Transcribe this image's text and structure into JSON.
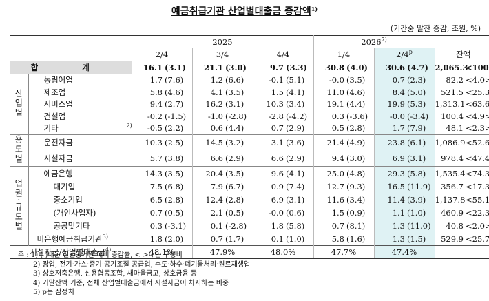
{
  "header": {
    "title": "예금취급기관 산업별대출금 증감액",
    "title_note": "1)",
    "unit": "(기간중 말잔 증감, 조원, %)"
  },
  "table": {
    "years": [
      {
        "label": "2025"
      },
      {
        "label": "2026",
        "note": "7)"
      }
    ],
    "periods": [
      {
        "label": "2/4"
      },
      {
        "label": "3/4"
      },
      {
        "label": "4/4"
      },
      {
        "label": "1/4"
      },
      {
        "label": "2/4",
        "note": "p"
      }
    ],
    "balance_header": "잔액",
    "total": {
      "label": "합 계",
      "cells": [
        [
          "16.1",
          "(3.1)"
        ],
        [
          "21.1",
          "(3.0)"
        ],
        [
          "9.7",
          "(3.3)"
        ],
        [
          "30.8",
          "(4.0)"
        ],
        [
          "30.6",
          "(4.7)"
        ]
      ],
      "balance": [
        "2,065.3",
        "<100.0>"
      ]
    },
    "groups": [
      {
        "label": "산업별",
        "rows": [
          {
            "label": "농림어업",
            "cells": [
              [
                "1.7",
                "(7.6)"
              ],
              [
                "1.2",
                "(6.6)"
              ],
              [
                "-0.1",
                "(5.1)"
              ],
              [
                "-0.0",
                "(3.5)"
              ],
              [
                "0.7",
                "(2.3)"
              ]
            ],
            "balance": [
              "82.2",
              "<4.0>"
            ]
          },
          {
            "label": "제조업",
            "cells": [
              [
                "5.8",
                "(4.6)"
              ],
              [
                "4.1",
                "(3.5)"
              ],
              [
                "1.5",
                "(4.1)"
              ],
              [
                "11.0",
                "(4.6)"
              ],
              [
                "8.4",
                "(5.0)"
              ]
            ],
            "balance": [
              "521.5",
              "<25.3>"
            ]
          },
          {
            "label": "서비스업",
            "cells": [
              [
                "9.4",
                "(2.7)"
              ],
              [
                "16.2",
                "(3.1)"
              ],
              [
                "10.3",
                "(3.4)"
              ],
              [
                "19.1",
                "(4.4)"
              ],
              [
                "19.9",
                "(5.3)"
              ]
            ],
            "balance": [
              "1,313.1",
              "<63.6>"
            ]
          },
          {
            "label": "건설업",
            "cells": [
              [
                "-0.2",
                "(-1.5)"
              ],
              [
                "-1.0",
                "(-2.8)"
              ],
              [
                "-2.8",
                "(-4.2)"
              ],
              [
                "0.3",
                "(-3.6)"
              ],
              [
                "-0.0",
                "(-3.4)"
              ]
            ],
            "balance": [
              "100.4",
              "<4.9>"
            ]
          },
          {
            "label": "기타",
            "note": "2)",
            "cells": [
              [
                "-0.5",
                "(2.2)"
              ],
              [
                "0.6",
                "(4.4)"
              ],
              [
                "0.7",
                "(2.9)"
              ],
              [
                "0.5",
                "(2.8)"
              ],
              [
                "1.7",
                "(7.9)"
              ]
            ],
            "balance": [
              "48.1",
              "<2.3>"
            ]
          }
        ]
      },
      {
        "label": "용도별",
        "rows": [
          {
            "label": "운전자금",
            "cells": [
              [
                "10.3",
                "(2.5)"
              ],
              [
                "14.5",
                "(3.2)"
              ],
              [
                "3.1",
                "(3.6)"
              ],
              [
                "21.4",
                "(4.9)"
              ],
              [
                "23.8",
                "(6.1)"
              ]
            ],
            "balance": [
              "1,086.9",
              "<52.6>"
            ]
          },
          {
            "label": "시설자금",
            "cells": [
              [
                "5.7",
                "(3.8)"
              ],
              [
                "6.6",
                "(2.9)"
              ],
              [
                "6.6",
                "(2.9)"
              ],
              [
                "9.4",
                "(3.0)"
              ],
              [
                "6.9",
                "(3.1)"
              ]
            ],
            "balance": [
              "978.4",
              "<47.4>"
            ]
          }
        ]
      },
      {
        "label": "업권·규모별",
        "rows": [
          {
            "label": "예금은행",
            "cells": [
              [
                "14.3",
                "(3.5)"
              ],
              [
                "20.4",
                "(3.5)"
              ],
              [
                "9.6",
                "(4.1)"
              ],
              [
                "25.0",
                "(4.8)"
              ],
              [
                "29.3",
                "(5.8)"
              ]
            ],
            "balance": [
              "1,535.4",
              "<74.3>"
            ]
          },
          {
            "label": "대기업",
            "cells": [
              [
                "7.5",
                "(6.8)"
              ],
              [
                "7.9",
                "(6.7)"
              ],
              [
                "0.9",
                "(7.4)"
              ],
              [
                "12.7",
                "(9.3)"
              ],
              [
                "16.5",
                "(11.9)"
              ]
            ],
            "balance": [
              "356.7",
              "<17.3>"
            ]
          },
          {
            "label": "중소기업",
            "cells": [
              [
                "6.5",
                "(2.8)"
              ],
              [
                "12.4",
                "(2.8)"
              ],
              [
                "6.9",
                "(3.1)"
              ],
              [
                "11.6",
                "(3.4)"
              ],
              [
                "11.4",
                "(3.9)"
              ]
            ],
            "balance": [
              "1,137.8",
              "<55.1>"
            ]
          },
          {
            "label": "(개인사업자)",
            "cells": [
              [
                "0.7",
                "(0.5)"
              ],
              [
                "2.1",
                "(0.5)"
              ],
              [
                "-0.0",
                "(0.6)"
              ],
              [
                "1.5",
                "(0.9)"
              ],
              [
                "1.1",
                "(1.0)"
              ]
            ],
            "balance": [
              "460.9",
              "<22.3>"
            ]
          },
          {
            "label": "공공및기타",
            "cells": [
              [
                "0.3",
                "(-3.1)"
              ],
              [
                "0.1",
                "(-2.8)"
              ],
              [
                "1.8",
                "(5.8)"
              ],
              [
                "0.7",
                "(8.1)"
              ],
              [
                "1.3",
                "(11.0)"
              ]
            ],
            "balance": [
              "40.8",
              "<2.0>"
            ]
          },
          {
            "label": "비은행예금취급기관",
            "note": "3)",
            "cells": [
              [
                "1.8",
                "(2.0)"
              ],
              [
                "0.7",
                "(1.7)"
              ],
              [
                "0.1",
                "(1.0)"
              ],
              [
                "5.8",
                "(1.6)"
              ],
              [
                "1.3",
                "(1.5)"
              ]
            ],
            "balance": [
              "529.9",
              "<25.7>"
            ]
          }
        ]
      }
    ],
    "footer_row": {
      "label": "시설자금/산업별대출금",
      "note": "4)",
      "cells": [
        "48.1%",
        "47.9%",
        "48.0%",
        "47.7%",
        "47.4%"
      ]
    }
  },
  "notes": {
    "prefix": "주 :",
    "items": [
      "1) ( )내는 전년동기말 대비 증감률, < >내는 구성비",
      "2) 광업, 전기·가스·증기·공기조절 공급업, 수도·하수·폐기물처리·원료재생업",
      "3) 상호저축은행, 신용협동조합, 새마을금고, 상호금융 등",
      "4) 기말잔액 기준, 전체 산업별대출금에서 시설자금이 차지하는 비중",
      "5) p는 잠정치"
    ]
  }
}
